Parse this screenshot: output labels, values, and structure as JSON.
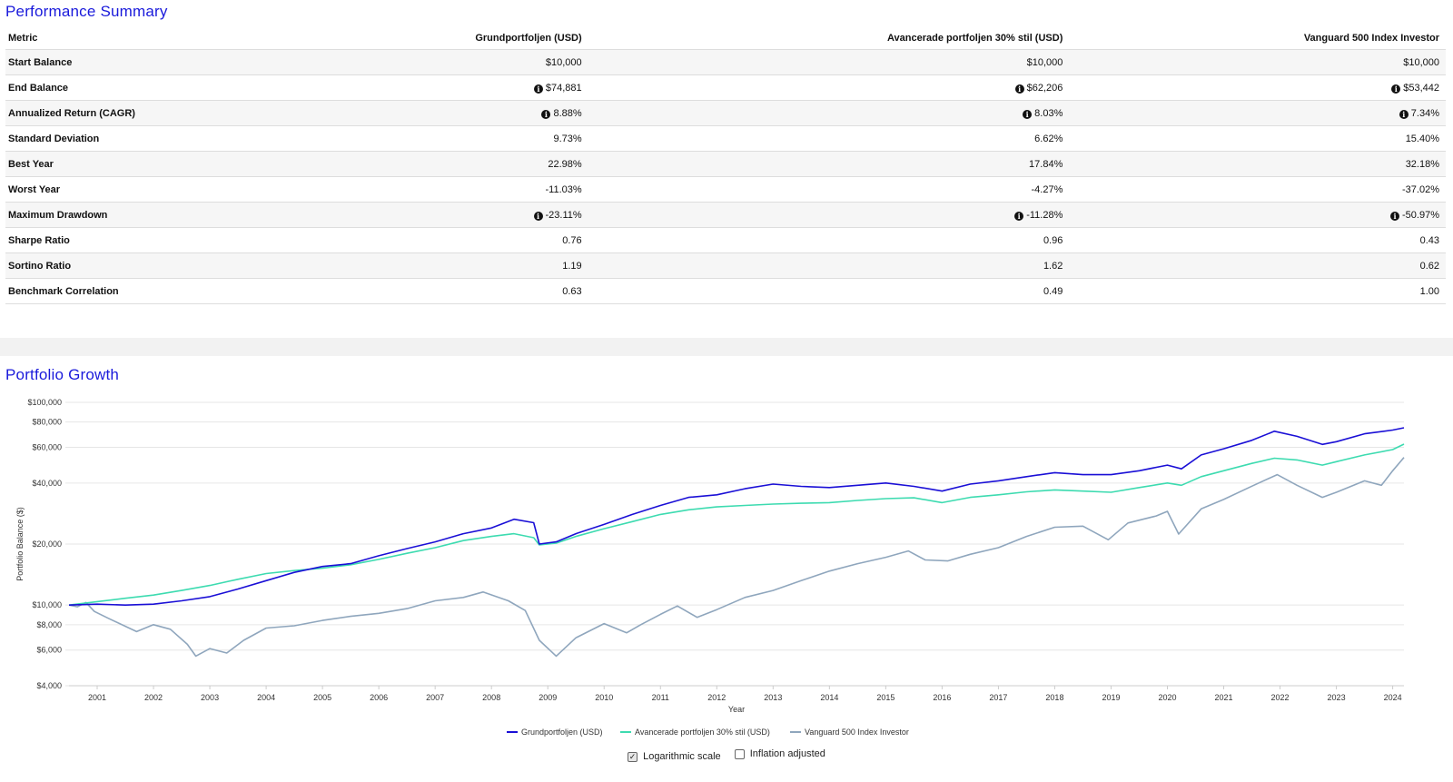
{
  "summary": {
    "title": "Performance Summary",
    "columns": [
      "Metric",
      "Grundportfoljen (USD)",
      "Avancerade portfoljen 30% stil (USD)",
      "Vanguard 500 Index Investor"
    ],
    "rows": [
      {
        "metric": "Start Balance",
        "values": [
          "$10,000",
          "$10,000",
          "$10,000"
        ],
        "info": false
      },
      {
        "metric": "End Balance",
        "values": [
          "$74,881",
          "$62,206",
          "$53,442"
        ],
        "info": true
      },
      {
        "metric": "Annualized Return (CAGR)",
        "values": [
          "8.88%",
          "8.03%",
          "7.34%"
        ],
        "info": true
      },
      {
        "metric": "Standard Deviation",
        "values": [
          "9.73%",
          "6.62%",
          "15.40%"
        ],
        "info": false
      },
      {
        "metric": "Best Year",
        "values": [
          "22.98%",
          "17.84%",
          "32.18%"
        ],
        "info": false
      },
      {
        "metric": "Worst Year",
        "values": [
          "-11.03%",
          "-4.27%",
          "-37.02%"
        ],
        "info": false
      },
      {
        "metric": "Maximum Drawdown",
        "values": [
          "-23.11%",
          "-11.28%",
          "-50.97%"
        ],
        "info": true
      },
      {
        "metric": "Sharpe Ratio",
        "values": [
          "0.76",
          "0.96",
          "0.43"
        ],
        "info": false
      },
      {
        "metric": "Sortino Ratio",
        "values": [
          "1.19",
          "1.62",
          "0.62"
        ],
        "info": false
      },
      {
        "metric": "Benchmark Correlation",
        "values": [
          "0.63",
          "0.49",
          "1.00"
        ],
        "info": false
      }
    ]
  },
  "growth": {
    "title": "Portfolio Growth",
    "options": [
      {
        "label": "Logarithmic scale",
        "checked": true
      },
      {
        "label": "Inflation adjusted",
        "checked": false
      }
    ]
  },
  "chart_data": {
    "type": "line",
    "xlabel": "Year",
    "ylabel": "Portfolio Balance ($)",
    "yscale": "log",
    "ylim": [
      4000,
      100000
    ],
    "xlim": [
      2000.5,
      2024.2
    ],
    "yticks": [
      4000,
      6000,
      8000,
      10000,
      20000,
      40000,
      60000,
      80000,
      100000
    ],
    "ytick_labels": [
      "$4,000",
      "$6,000",
      "$8,000",
      "$10,000",
      "$20,000",
      "$40,000",
      "$60,000",
      "$80,000",
      "$100,000"
    ],
    "xticks": [
      2001,
      2002,
      2003,
      2004,
      2005,
      2006,
      2007,
      2008,
      2009,
      2010,
      2011,
      2012,
      2013,
      2014,
      2015,
      2016,
      2017,
      2018,
      2019,
      2020,
      2021,
      2022,
      2023,
      2024
    ],
    "xtick_labels": [
      "2001",
      "2002",
      "2003",
      "2004",
      "2005",
      "2006",
      "2007",
      "2008",
      "2009",
      "2010",
      "2011",
      "2012",
      "2013",
      "2014",
      "2015",
      "2016",
      "2017",
      "2018",
      "2019",
      "2020",
      "2021",
      "2022",
      "2023",
      "2024"
    ],
    "grid": true,
    "legend_position": "bottom-center",
    "series": [
      {
        "name": "Grundportfoljen (USD)",
        "color": "#1a0fd6",
        "points": [
          [
            2000.5,
            10000
          ],
          [
            2001.0,
            10100
          ],
          [
            2001.5,
            10000
          ],
          [
            2002.0,
            10100
          ],
          [
            2002.5,
            10500
          ],
          [
            2003.0,
            11000
          ],
          [
            2003.5,
            12000
          ],
          [
            2004.0,
            13200
          ],
          [
            2004.5,
            14500
          ],
          [
            2005.0,
            15500
          ],
          [
            2005.5,
            16000
          ],
          [
            2006.0,
            17500
          ],
          [
            2006.5,
            19000
          ],
          [
            2007.0,
            20500
          ],
          [
            2007.5,
            22500
          ],
          [
            2008.0,
            24000
          ],
          [
            2008.4,
            26500
          ],
          [
            2008.75,
            25500
          ],
          [
            2008.85,
            20000
          ],
          [
            2009.15,
            20500
          ],
          [
            2009.5,
            22500
          ],
          [
            2010.0,
            25000
          ],
          [
            2010.5,
            28000
          ],
          [
            2011.0,
            31000
          ],
          [
            2011.5,
            34000
          ],
          [
            2012.0,
            35000
          ],
          [
            2012.5,
            37500
          ],
          [
            2013.0,
            39500
          ],
          [
            2013.5,
            38500
          ],
          [
            2014.0,
            38000
          ],
          [
            2014.5,
            39000
          ],
          [
            2015.0,
            40000
          ],
          [
            2015.5,
            38500
          ],
          [
            2016.0,
            36500
          ],
          [
            2016.5,
            39500
          ],
          [
            2017.0,
            41000
          ],
          [
            2017.5,
            43000
          ],
          [
            2018.0,
            45000
          ],
          [
            2018.5,
            44000
          ],
          [
            2019.0,
            44000
          ],
          [
            2019.5,
            46000
          ],
          [
            2020.0,
            49000
          ],
          [
            2020.25,
            47000
          ],
          [
            2020.6,
            55000
          ],
          [
            2021.0,
            59000
          ],
          [
            2021.5,
            65000
          ],
          [
            2021.9,
            72000
          ],
          [
            2022.3,
            68000
          ],
          [
            2022.75,
            62000
          ],
          [
            2023.0,
            64000
          ],
          [
            2023.5,
            70000
          ],
          [
            2024.0,
            73000
          ],
          [
            2024.2,
            74881
          ]
        ]
      },
      {
        "name": "Avancerade portfoljen 30% stil (USD)",
        "color": "#3ddbb0",
        "points": [
          [
            2000.5,
            10000
          ],
          [
            2001.0,
            10400
          ],
          [
            2001.5,
            10800
          ],
          [
            2002.0,
            11200
          ],
          [
            2002.5,
            11800
          ],
          [
            2003.0,
            12500
          ],
          [
            2003.5,
            13400
          ],
          [
            2004.0,
            14300
          ],
          [
            2004.5,
            14800
          ],
          [
            2005.0,
            15200
          ],
          [
            2005.5,
            15800
          ],
          [
            2006.0,
            16800
          ],
          [
            2006.5,
            18000
          ],
          [
            2007.0,
            19200
          ],
          [
            2007.5,
            20800
          ],
          [
            2008.0,
            21800
          ],
          [
            2008.4,
            22500
          ],
          [
            2008.75,
            21500
          ],
          [
            2008.85,
            19800
          ],
          [
            2009.15,
            20200
          ],
          [
            2009.5,
            21800
          ],
          [
            2010.0,
            23800
          ],
          [
            2010.5,
            25800
          ],
          [
            2011.0,
            28000
          ],
          [
            2011.5,
            29500
          ],
          [
            2012.0,
            30500
          ],
          [
            2012.5,
            31000
          ],
          [
            2013.0,
            31500
          ],
          [
            2013.5,
            31800
          ],
          [
            2014.0,
            32000
          ],
          [
            2014.5,
            32800
          ],
          [
            2015.0,
            33500
          ],
          [
            2015.5,
            33800
          ],
          [
            2016.0,
            32000
          ],
          [
            2016.5,
            34000
          ],
          [
            2017.0,
            35000
          ],
          [
            2017.5,
            36200
          ],
          [
            2018.0,
            37000
          ],
          [
            2018.5,
            36500
          ],
          [
            2019.0,
            36000
          ],
          [
            2019.5,
            38000
          ],
          [
            2020.0,
            40000
          ],
          [
            2020.25,
            39000
          ],
          [
            2020.6,
            43000
          ],
          [
            2021.0,
            46000
          ],
          [
            2021.5,
            50000
          ],
          [
            2021.9,
            53000
          ],
          [
            2022.3,
            52000
          ],
          [
            2022.75,
            49000
          ],
          [
            2023.0,
            51000
          ],
          [
            2023.5,
            55000
          ],
          [
            2024.0,
            58500
          ],
          [
            2024.2,
            62206
          ]
        ]
      },
      {
        "name": "Vanguard 500 Index Investor",
        "color": "#8fa6bd",
        "points": [
          [
            2000.5,
            10000
          ],
          [
            2000.65,
            9800
          ],
          [
            2000.8,
            10300
          ],
          [
            2000.95,
            9300
          ],
          [
            2001.2,
            8600
          ],
          [
            2001.7,
            7400
          ],
          [
            2002.0,
            8000
          ],
          [
            2002.3,
            7600
          ],
          [
            2002.6,
            6400
          ],
          [
            2002.75,
            5600
          ],
          [
            2003.0,
            6100
          ],
          [
            2003.3,
            5800
          ],
          [
            2003.6,
            6700
          ],
          [
            2004.0,
            7700
          ],
          [
            2004.5,
            7900
          ],
          [
            2005.0,
            8400
          ],
          [
            2005.5,
            8800
          ],
          [
            2006.0,
            9100
          ],
          [
            2006.5,
            9600
          ],
          [
            2007.0,
            10500
          ],
          [
            2007.5,
            10900
          ],
          [
            2007.85,
            11600
          ],
          [
            2008.3,
            10500
          ],
          [
            2008.6,
            9400
          ],
          [
            2008.85,
            6700
          ],
          [
            2009.15,
            5600
          ],
          [
            2009.5,
            6900
          ],
          [
            2010.0,
            8100
          ],
          [
            2010.4,
            7300
          ],
          [
            2010.65,
            8000
          ],
          [
            2011.0,
            9000
          ],
          [
            2011.3,
            9900
          ],
          [
            2011.65,
            8700
          ],
          [
            2012.0,
            9500
          ],
          [
            2012.5,
            10900
          ],
          [
            2013.0,
            11800
          ],
          [
            2013.5,
            13200
          ],
          [
            2014.0,
            14700
          ],
          [
            2014.5,
            16000
          ],
          [
            2015.0,
            17200
          ],
          [
            2015.4,
            18500
          ],
          [
            2015.7,
            16700
          ],
          [
            2016.1,
            16500
          ],
          [
            2016.5,
            17800
          ],
          [
            2017.0,
            19200
          ],
          [
            2017.5,
            21800
          ],
          [
            2018.0,
            24200
          ],
          [
            2018.5,
            24500
          ],
          [
            2018.95,
            21000
          ],
          [
            2019.3,
            25400
          ],
          [
            2019.8,
            27500
          ],
          [
            2020.0,
            29000
          ],
          [
            2020.2,
            22400
          ],
          [
            2020.6,
            29800
          ],
          [
            2021.0,
            33200
          ],
          [
            2021.5,
            38600
          ],
          [
            2021.95,
            44000
          ],
          [
            2022.3,
            39000
          ],
          [
            2022.75,
            34000
          ],
          [
            2023.0,
            36000
          ],
          [
            2023.5,
            41000
          ],
          [
            2023.8,
            39000
          ],
          [
            2024.0,
            46000
          ],
          [
            2024.2,
            53442
          ]
        ]
      }
    ]
  }
}
